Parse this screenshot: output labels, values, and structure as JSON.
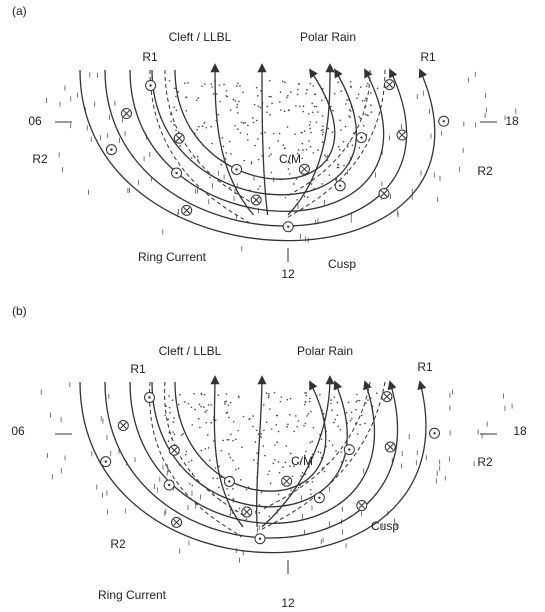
{
  "panels": [
    {
      "label": "(a)",
      "texts": [
        "Cleft / LLBL",
        "Polar Rain",
        "R1",
        "R1",
        "06",
        "18",
        "R2",
        "R2",
        "C/M",
        "Ring Current",
        "Cusp",
        "12"
      ]
    },
    {
      "label": "(b)",
      "texts": [
        "Cleft / LLBL",
        "Polar Rain",
        "R1",
        "R1",
        "06",
        "18",
        "C/M",
        "R2",
        "R2",
        "Cusp",
        "Ring Current",
        "12"
      ]
    }
  ]
}
